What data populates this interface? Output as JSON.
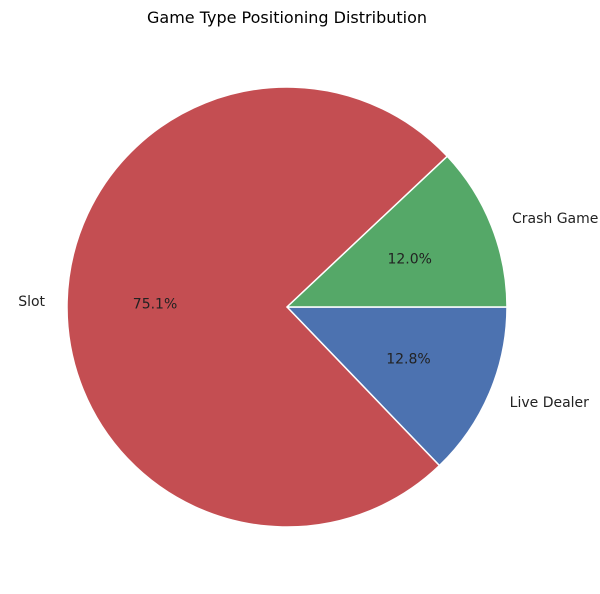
{
  "chart_data": {
    "type": "pie",
    "title": "Game Type Positioning Distribution",
    "slices": [
      {
        "label": "Live Dealer",
        "value": 12.8,
        "pct_label": "12.8%",
        "color": "#4c72b0"
      },
      {
        "label": "Slot",
        "value": 75.1,
        "pct_label": "75.1%",
        "color": "#c44e52"
      },
      {
        "label": "Crash Game",
        "value": 12.0,
        "pct_label": "12.0%",
        "color": "#55a868"
      }
    ],
    "direction": "clockwise",
    "start": "3 o'clock",
    "legend": "none"
  }
}
